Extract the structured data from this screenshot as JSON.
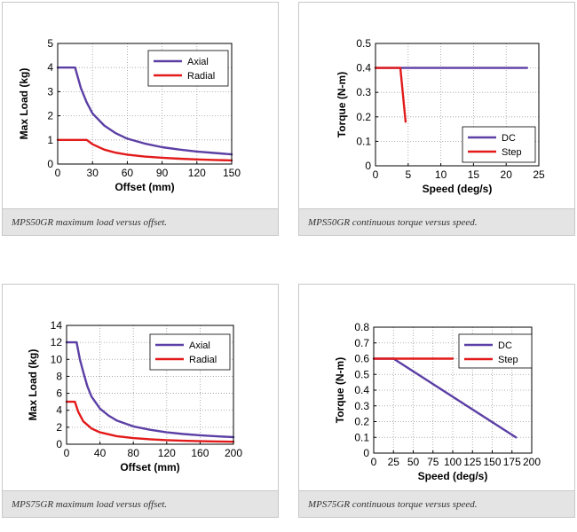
{
  "chart_data": [
    {
      "type": "line",
      "caption": "MPS50GR maximum load versus offset.",
      "xlabel": "Offset (mm)",
      "ylabel": "Max Load (kg)",
      "xlim": [
        0,
        150
      ],
      "ylim": [
        0,
        5
      ],
      "xticks": [
        0,
        30,
        60,
        90,
        120,
        150
      ],
      "yticks": [
        0,
        1,
        2,
        3,
        4,
        5
      ],
      "xtick_labels": [
        "0",
        "30",
        "60",
        "90",
        "120",
        "150"
      ],
      "ytick_labels": [
        "0",
        "1",
        "2",
        "3",
        "4",
        "5"
      ],
      "grid": true,
      "legend_position": "top-right",
      "series": [
        {
          "name": "Axial",
          "color": "#5b3fa5",
          "points": [
            [
              0,
              4
            ],
            [
              15,
              4
            ],
            [
              20,
              3.15
            ],
            [
              25,
              2.55
            ],
            [
              30,
              2.1
            ],
            [
              40,
              1.6
            ],
            [
              50,
              1.28
            ],
            [
              60,
              1.05
            ],
            [
              75,
              0.85
            ],
            [
              90,
              0.7
            ],
            [
              105,
              0.6
            ],
            [
              120,
              0.52
            ],
            [
              135,
              0.46
            ],
            [
              150,
              0.4
            ]
          ]
        },
        {
          "name": "Radial",
          "color": "#e21a1a",
          "points": [
            [
              0,
              1
            ],
            [
              25,
              1
            ],
            [
              30,
              0.82
            ],
            [
              40,
              0.6
            ],
            [
              50,
              0.47
            ],
            [
              60,
              0.39
            ],
            [
              75,
              0.31
            ],
            [
              90,
              0.26
            ],
            [
              105,
              0.22
            ],
            [
              120,
              0.19
            ],
            [
              135,
              0.17
            ],
            [
              150,
              0.15
            ]
          ]
        }
      ]
    },
    {
      "type": "line",
      "caption": "MPS50GR continuous torque versus speed.",
      "xlabel": "Speed (deg/s)",
      "ylabel": "Torque (N-m)",
      "xlim": [
        0,
        25
      ],
      "ylim": [
        0,
        0.5
      ],
      "xticks": [
        0,
        5,
        10,
        15,
        20,
        25
      ],
      "yticks": [
        0,
        0.1,
        0.2,
        0.3,
        0.4,
        0.5
      ],
      "xtick_labels": [
        "0",
        "5",
        "10",
        "15",
        "20",
        "25"
      ],
      "ytick_labels": [
        "0",
        "0.1",
        "0.2",
        "0.3",
        "0.4",
        "0.5"
      ],
      "grid": true,
      "legend_position": "bottom-right",
      "series": [
        {
          "name": "DC",
          "color": "#5b3fa5",
          "points": [
            [
              0,
              0.4
            ],
            [
              23.2,
              0.4
            ]
          ]
        },
        {
          "name": "Step",
          "color": "#e21a1a",
          "points": [
            [
              0,
              0.4
            ],
            [
              3.8,
              0.4
            ],
            [
              4.6,
              0.18
            ]
          ]
        }
      ]
    },
    {
      "type": "line",
      "caption": "MPS75GR maximum load versus offset.",
      "xlabel": "Offset (mm)",
      "ylabel": "Max Load (kg)",
      "xlim": [
        0,
        200
      ],
      "ylim": [
        0,
        14
      ],
      "xticks": [
        0,
        40,
        80,
        120,
        160,
        200
      ],
      "yticks": [
        0,
        2,
        4,
        6,
        8,
        10,
        12,
        14
      ],
      "xtick_labels": [
        "0",
        "40",
        "80",
        "120",
        "160",
        "200"
      ],
      "ytick_labels": [
        "0",
        "2",
        "4",
        "6",
        "8",
        "10",
        "12",
        "14"
      ],
      "grid": true,
      "legend_position": "top-right",
      "series": [
        {
          "name": "Axial",
          "color": "#5b3fa5",
          "points": [
            [
              0,
              12
            ],
            [
              12,
              12
            ],
            [
              16,
              10
            ],
            [
              20,
              8.5
            ],
            [
              25,
              6.8
            ],
            [
              30,
              5.6
            ],
            [
              40,
              4.2
            ],
            [
              50,
              3.4
            ],
            [
              60,
              2.8
            ],
            [
              80,
              2.1
            ],
            [
              100,
              1.7
            ],
            [
              120,
              1.4
            ],
            [
              140,
              1.2
            ],
            [
              160,
              1.05
            ],
            [
              180,
              0.93
            ],
            [
              200,
              0.84
            ]
          ]
        },
        {
          "name": "Radial",
          "color": "#e21a1a",
          "points": [
            [
              0,
              5
            ],
            [
              10,
              5
            ],
            [
              14,
              3.8
            ],
            [
              20,
              2.7
            ],
            [
              30,
              1.85
            ],
            [
              40,
              1.4
            ],
            [
              60,
              0.95
            ],
            [
              80,
              0.72
            ],
            [
              100,
              0.58
            ],
            [
              120,
              0.48
            ],
            [
              140,
              0.41
            ],
            [
              160,
              0.36
            ],
            [
              180,
              0.32
            ],
            [
              200,
              0.29
            ]
          ]
        }
      ]
    },
    {
      "type": "line",
      "caption": "MPS75GR continuous torque versus speed.",
      "xlabel": "Speed (deg/s)",
      "ylabel": "Torque (N-m)",
      "xlim": [
        0,
        200
      ],
      "ylim": [
        0,
        0.8
      ],
      "xticks": [
        0,
        25,
        50,
        75,
        100,
        125,
        150,
        175,
        200
      ],
      "yticks": [
        0,
        0.1,
        0.2,
        0.3,
        0.4,
        0.5,
        0.6,
        0.7,
        0.8
      ],
      "xtick_labels": [
        "0",
        "25",
        "50",
        "75",
        "100",
        "125",
        "150",
        "175",
        "200"
      ],
      "ytick_labels": [
        "0",
        "0.1",
        "0.2",
        "0.3",
        "0.4",
        "0.5",
        "0.6",
        "0.7",
        "0.8"
      ],
      "grid": true,
      "legend_position": "top-right",
      "series": [
        {
          "name": "DC",
          "color": "#5b3fa5",
          "points": [
            [
              0,
              0.6
            ],
            [
              25,
              0.6
            ],
            [
              180,
              0.1
            ]
          ]
        },
        {
          "name": "Step",
          "color": "#e21a1a",
          "points": [
            [
              0,
              0.6
            ],
            [
              100,
              0.6
            ]
          ]
        }
      ]
    }
  ]
}
